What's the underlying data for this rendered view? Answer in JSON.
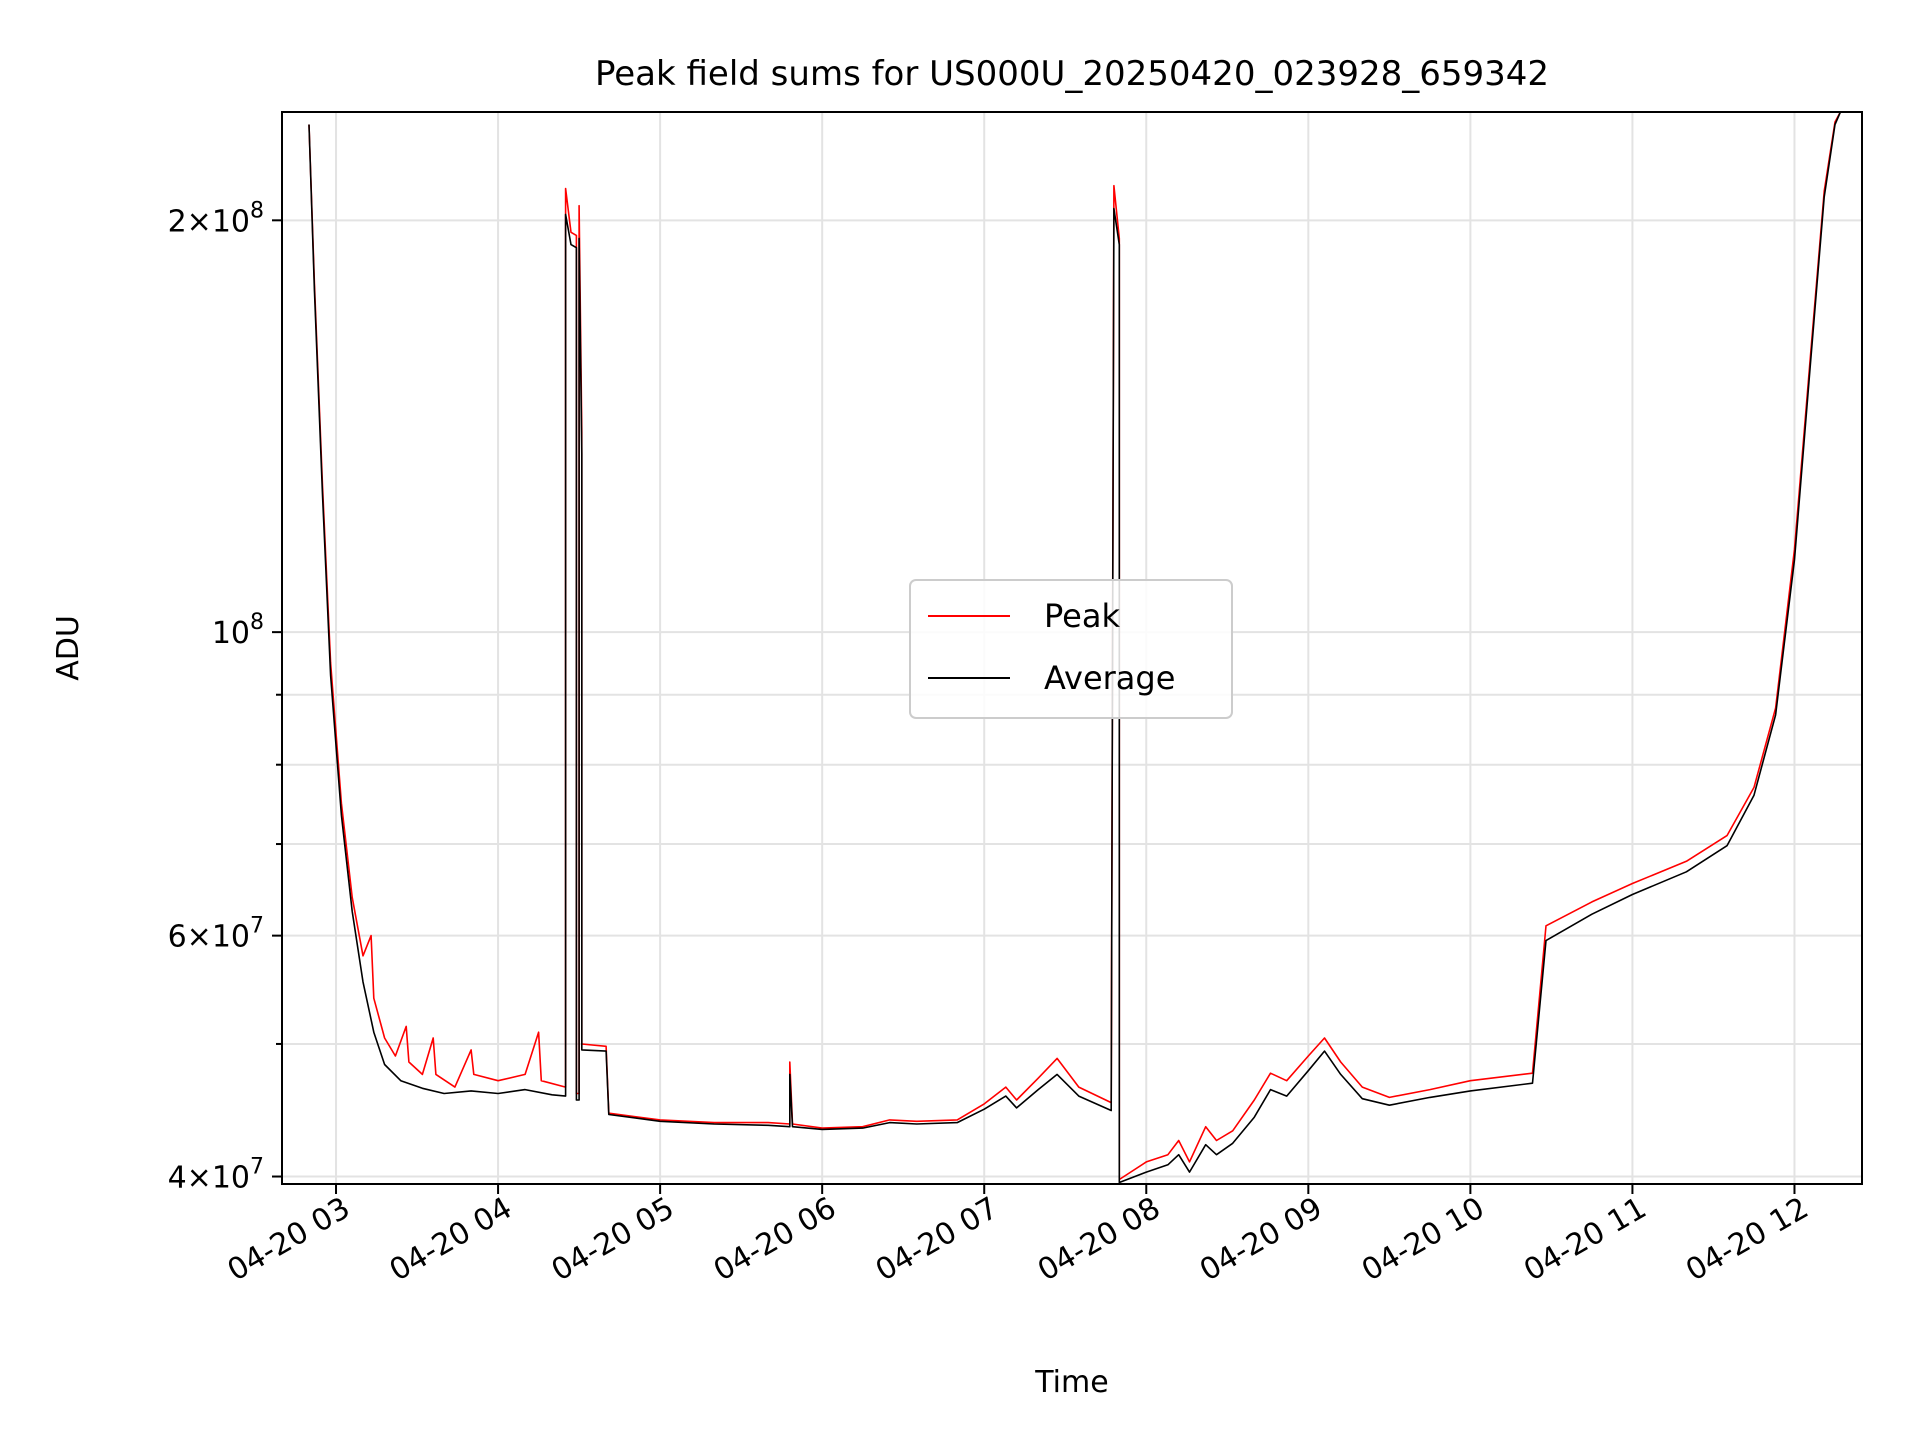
{
  "chart_data": {
    "type": "line",
    "title": "Peak field sums for US000U_20250420_023928_659342",
    "xlabel": "Time",
    "ylabel": "ADU",
    "yscale": "log",
    "grid": true,
    "legend_position": "center",
    "x_range": [
      "2025-04-20 02:40",
      "2025-04-20 12:25"
    ],
    "ylim": [
      39500000,
      240000000
    ],
    "x_ticks": [
      {
        "value": "2025-04-20 03:00",
        "label": "04-20 03"
      },
      {
        "value": "2025-04-20 04:00",
        "label": "04-20 04"
      },
      {
        "value": "2025-04-20 05:00",
        "label": "04-20 05"
      },
      {
        "value": "2025-04-20 06:00",
        "label": "04-20 06"
      },
      {
        "value": "2025-04-20 07:00",
        "label": "04-20 07"
      },
      {
        "value": "2025-04-20 08:00",
        "label": "04-20 08"
      },
      {
        "value": "2025-04-20 09:00",
        "label": "04-20 09"
      },
      {
        "value": "2025-04-20 10:00",
        "label": "04-20 10"
      },
      {
        "value": "2025-04-20 11:00",
        "label": "04-20 11"
      },
      {
        "value": "2025-04-20 12:00",
        "label": "04-20 12"
      }
    ],
    "y_ticks": [
      {
        "value": 40000000,
        "base": "4",
        "exp": "7"
      },
      {
        "value": 60000000,
        "base": "6",
        "exp": "7"
      },
      {
        "value": 100000000,
        "base": "",
        "exp": "8"
      },
      {
        "value": 200000000,
        "base": "2",
        "exp": "8"
      }
    ],
    "y_minor_ticks": [
      50000000,
      70000000,
      80000000,
      90000000
    ],
    "series": [
      {
        "name": "Peak",
        "color": "#ff0000",
        "points": [
          [
            "2025-04-20 02:50",
            235000000
          ],
          [
            "2025-04-20 02:52",
            180000000
          ],
          [
            "2025-04-20 02:55",
            128000000
          ],
          [
            "2025-04-20 02:58",
            95000000
          ],
          [
            "2025-04-20 03:02",
            75000000
          ],
          [
            "2025-04-20 03:06",
            64000000
          ],
          [
            "2025-04-20 03:10",
            58000000
          ],
          [
            "2025-04-20 03:13",
            60000000
          ],
          [
            "2025-04-20 03:14",
            54000000
          ],
          [
            "2025-04-20 03:18",
            50500000
          ],
          [
            "2025-04-20 03:22",
            49000000
          ],
          [
            "2025-04-20 03:26",
            51500000
          ],
          [
            "2025-04-20 03:27",
            48500000
          ],
          [
            "2025-04-20 03:32",
            47500000
          ],
          [
            "2025-04-20 03:36",
            50500000
          ],
          [
            "2025-04-20 03:37",
            47500000
          ],
          [
            "2025-04-20 03:44",
            46500000
          ],
          [
            "2025-04-20 03:50",
            49500000
          ],
          [
            "2025-04-20 03:51",
            47500000
          ],
          [
            "2025-04-20 04:00",
            47000000
          ],
          [
            "2025-04-20 04:10",
            47500000
          ],
          [
            "2025-04-20 04:15",
            51000000
          ],
          [
            "2025-04-20 04:16",
            47000000
          ],
          [
            "2025-04-20 04:25",
            46500000
          ],
          [
            "2025-04-20 04:25",
            211000000
          ],
          [
            "2025-04-20 04:27",
            196000000
          ],
          [
            "2025-04-20 04:29",
            195000000
          ],
          [
            "2025-04-20 04:29",
            46000000
          ],
          [
            "2025-04-20 04:30",
            46000000
          ],
          [
            "2025-04-20 04:30",
            205000000
          ],
          [
            "2025-04-20 04:31",
            140000000
          ],
          [
            "2025-04-20 04:31",
            50000000
          ],
          [
            "2025-04-20 04:40",
            49800000
          ],
          [
            "2025-04-20 04:41",
            44500000
          ],
          [
            "2025-04-20 05:00",
            44000000
          ],
          [
            "2025-04-20 05:20",
            43800000
          ],
          [
            "2025-04-20 05:40",
            43800000
          ],
          [
            "2025-04-20 05:48",
            43700000
          ],
          [
            "2025-04-20 05:48",
            48500000
          ],
          [
            "2025-04-20 05:49",
            43700000
          ],
          [
            "2025-04-20 06:00",
            43400000
          ],
          [
            "2025-04-20 06:15",
            43500000
          ],
          [
            "2025-04-20 06:25",
            44000000
          ],
          [
            "2025-04-20 06:35",
            43900000
          ],
          [
            "2025-04-20 06:50",
            44000000
          ],
          [
            "2025-04-20 07:00",
            45200000
          ],
          [
            "2025-04-20 07:08",
            46500000
          ],
          [
            "2025-04-20 07:12",
            45500000
          ],
          [
            "2025-04-20 07:20",
            47200000
          ],
          [
            "2025-04-20 07:27",
            48800000
          ],
          [
            "2025-04-20 07:35",
            46500000
          ],
          [
            "2025-04-20 07:47",
            45300000
          ],
          [
            "2025-04-20 07:48",
            212000000
          ],
          [
            "2025-04-20 07:50",
            194000000
          ],
          [
            "2025-04-20 07:50",
            39800000
          ],
          [
            "2025-04-20 08:00",
            41000000
          ],
          [
            "2025-04-20 08:08",
            41500000
          ],
          [
            "2025-04-20 08:12",
            42500000
          ],
          [
            "2025-04-20 08:16",
            41000000
          ],
          [
            "2025-04-20 08:22",
            43500000
          ],
          [
            "2025-04-20 08:26",
            42500000
          ],
          [
            "2025-04-20 08:32",
            43200000
          ],
          [
            "2025-04-20 08:40",
            45500000
          ],
          [
            "2025-04-20 08:46",
            47600000
          ],
          [
            "2025-04-20 08:52",
            47000000
          ],
          [
            "2025-04-20 09:00",
            49000000
          ],
          [
            "2025-04-20 09:06",
            50500000
          ],
          [
            "2025-04-20 09:12",
            48500000
          ],
          [
            "2025-04-20 09:20",
            46500000
          ],
          [
            "2025-04-20 09:30",
            45700000
          ],
          [
            "2025-04-20 09:45",
            46300000
          ],
          [
            "2025-04-20 10:00",
            47000000
          ],
          [
            "2025-04-20 10:23",
            47600000
          ],
          [
            "2025-04-20 10:28",
            61000000
          ],
          [
            "2025-04-20 10:45",
            63500000
          ],
          [
            "2025-04-20 11:00",
            65500000
          ],
          [
            "2025-04-20 11:20",
            68000000
          ],
          [
            "2025-04-20 11:35",
            71000000
          ],
          [
            "2025-04-20 11:45",
            77000000
          ],
          [
            "2025-04-20 11:53",
            88000000
          ],
          [
            "2025-04-20 12:00",
            115000000
          ],
          [
            "2025-04-20 12:06",
            160000000
          ],
          [
            "2025-04-20 12:11",
            210000000
          ],
          [
            "2025-04-20 12:15",
            236000000
          ],
          [
            "2025-04-20 12:17",
            240000000
          ]
        ]
      },
      {
        "name": "Average",
        "color": "#000000",
        "points": [
          [
            "2025-04-20 02:50",
            235000000
          ],
          [
            "2025-04-20 02:52",
            178000000
          ],
          [
            "2025-04-20 02:55",
            126000000
          ],
          [
            "2025-04-20 02:58",
            93000000
          ],
          [
            "2025-04-20 03:02",
            73500000
          ],
          [
            "2025-04-20 03:06",
            62500000
          ],
          [
            "2025-04-20 03:10",
            55500000
          ],
          [
            "2025-04-20 03:14",
            51000000
          ],
          [
            "2025-04-20 03:18",
            48300000
          ],
          [
            "2025-04-20 03:24",
            47000000
          ],
          [
            "2025-04-20 03:32",
            46400000
          ],
          [
            "2025-04-20 03:40",
            46000000
          ],
          [
            "2025-04-20 03:50",
            46200000
          ],
          [
            "2025-04-20 04:00",
            46000000
          ],
          [
            "2025-04-20 04:10",
            46300000
          ],
          [
            "2025-04-20 04:20",
            45900000
          ],
          [
            "2025-04-20 04:25",
            45800000
          ],
          [
            "2025-04-20 04:25",
            202000000
          ],
          [
            "2025-04-20 04:27",
            192000000
          ],
          [
            "2025-04-20 04:29",
            191000000
          ],
          [
            "2025-04-20 04:29",
            45500000
          ],
          [
            "2025-04-20 04:30",
            45500000
          ],
          [
            "2025-04-20 04:30",
            194000000
          ],
          [
            "2025-04-20 04:31",
            135000000
          ],
          [
            "2025-04-20 04:31",
            49500000
          ],
          [
            "2025-04-20 04:40",
            49400000
          ],
          [
            "2025-04-20 04:41",
            44400000
          ],
          [
            "2025-04-20 05:00",
            43900000
          ],
          [
            "2025-04-20 05:20",
            43700000
          ],
          [
            "2025-04-20 05:40",
            43600000
          ],
          [
            "2025-04-20 05:48",
            43500000
          ],
          [
            "2025-04-20 05:48",
            47500000
          ],
          [
            "2025-04-20 05:49",
            43500000
          ],
          [
            "2025-04-20 06:00",
            43300000
          ],
          [
            "2025-04-20 06:15",
            43400000
          ],
          [
            "2025-04-20 06:25",
            43800000
          ],
          [
            "2025-04-20 06:35",
            43700000
          ],
          [
            "2025-04-20 06:50",
            43800000
          ],
          [
            "2025-04-20 07:00",
            44800000
          ],
          [
            "2025-04-20 07:08",
            45800000
          ],
          [
            "2025-04-20 07:12",
            44900000
          ],
          [
            "2025-04-20 07:20",
            46300000
          ],
          [
            "2025-04-20 07:27",
            47500000
          ],
          [
            "2025-04-20 07:35",
            45800000
          ],
          [
            "2025-04-20 07:47",
            44700000
          ],
          [
            "2025-04-20 07:48",
            204000000
          ],
          [
            "2025-04-20 07:50",
            192000000
          ],
          [
            "2025-04-20 07:50",
            39600000
          ],
          [
            "2025-04-20 08:00",
            40300000
          ],
          [
            "2025-04-20 08:08",
            40800000
          ],
          [
            "2025-04-20 08:12",
            41500000
          ],
          [
            "2025-04-20 08:16",
            40300000
          ],
          [
            "2025-04-20 08:22",
            42200000
          ],
          [
            "2025-04-20 08:26",
            41500000
          ],
          [
            "2025-04-20 08:32",
            42300000
          ],
          [
            "2025-04-20 08:40",
            44200000
          ],
          [
            "2025-04-20 08:46",
            46300000
          ],
          [
            "2025-04-20 08:52",
            45800000
          ],
          [
            "2025-04-20 09:00",
            47800000
          ],
          [
            "2025-04-20 09:06",
            49400000
          ],
          [
            "2025-04-20 09:12",
            47500000
          ],
          [
            "2025-04-20 09:20",
            45600000
          ],
          [
            "2025-04-20 09:30",
            45100000
          ],
          [
            "2025-04-20 09:45",
            45700000
          ],
          [
            "2025-04-20 10:00",
            46200000
          ],
          [
            "2025-04-20 10:23",
            46800000
          ],
          [
            "2025-04-20 10:28",
            59500000
          ],
          [
            "2025-04-20 10:45",
            62200000
          ],
          [
            "2025-04-20 11:00",
            64300000
          ],
          [
            "2025-04-20 11:20",
            66800000
          ],
          [
            "2025-04-20 11:35",
            69800000
          ],
          [
            "2025-04-20 11:45",
            76000000
          ],
          [
            "2025-04-20 11:53",
            87000000
          ],
          [
            "2025-04-20 12:00",
            113000000
          ],
          [
            "2025-04-20 12:06",
            158000000
          ],
          [
            "2025-04-20 12:11",
            208000000
          ],
          [
            "2025-04-20 12:15",
            235000000
          ],
          [
            "2025-04-20 12:17",
            240000000
          ]
        ]
      }
    ]
  }
}
